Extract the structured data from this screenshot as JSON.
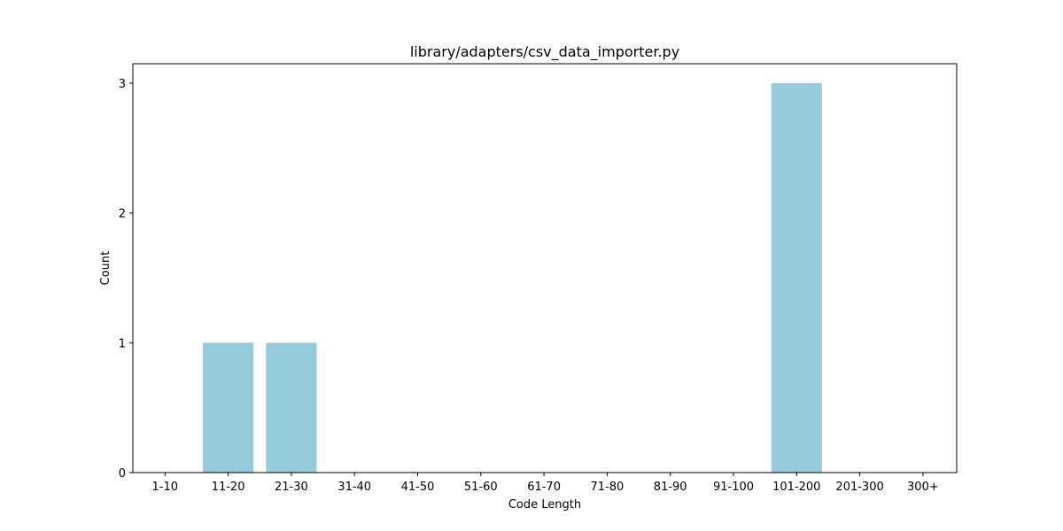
{
  "chart_data": {
    "type": "bar",
    "title": "library/adapters/csv_data_importer.py",
    "xlabel": "Code Length",
    "ylabel": "Count",
    "categories": [
      "1-10",
      "11-20",
      "21-30",
      "31-40",
      "41-50",
      "51-60",
      "61-70",
      "71-80",
      "81-90",
      "91-100",
      "101-200",
      "201-300",
      "300+"
    ],
    "values": [
      0,
      1,
      1,
      0,
      0,
      0,
      0,
      0,
      0,
      0,
      3,
      0,
      0
    ],
    "ylim": [
      0,
      3.15
    ],
    "yticks": [
      0,
      1,
      2,
      3
    ],
    "bar_color": "#96cadd",
    "grid": false,
    "legend": "none"
  }
}
